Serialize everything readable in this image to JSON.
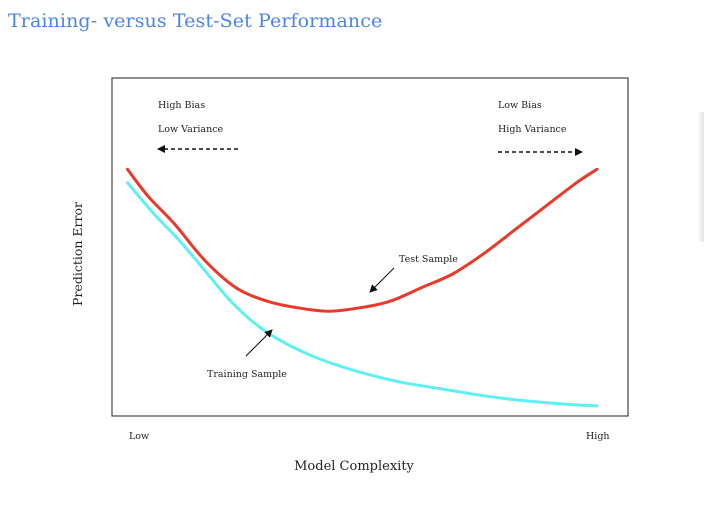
{
  "page": {
    "title": "Training- versus Test-Set Performance",
    "title_color": "#4a86e8"
  },
  "chart_data": {
    "type": "line",
    "xlabel": "Model Complexity",
    "ylabel": "Prediction Error",
    "xticks": [
      {
        "label": "Low",
        "value": 0
      },
      {
        "label": "High",
        "value": 1
      }
    ],
    "xlim": [
      0,
      1
    ],
    "ylim": [
      0,
      1
    ],
    "grid": false,
    "annotations": {
      "left_line1": "High Bias",
      "left_line2": "Low Variance",
      "right_line1": "Low Bias",
      "right_line2": "High Variance",
      "test_label": "Test Sample",
      "training_label": "Training Sample"
    },
    "series": [
      {
        "name": "Test Sample",
        "color": "#e8392a",
        "x": [
          0.03,
          0.07,
          0.12,
          0.18,
          0.24,
          0.3,
          0.36,
          0.42,
          0.48,
          0.54,
          0.6,
          0.66,
          0.72,
          0.78,
          0.84,
          0.9,
          0.94
        ],
        "y": [
          0.73,
          0.65,
          0.57,
          0.46,
          0.38,
          0.34,
          0.32,
          0.31,
          0.32,
          0.34,
          0.38,
          0.42,
          0.48,
          0.55,
          0.62,
          0.69,
          0.73
        ]
      },
      {
        "name": "Training Sample",
        "color": "#5ff1f1",
        "x": [
          0.03,
          0.08,
          0.13,
          0.18,
          0.23,
          0.28,
          0.33,
          0.4,
          0.48,
          0.56,
          0.64,
          0.72,
          0.8,
          0.88,
          0.94
        ],
        "y": [
          0.69,
          0.6,
          0.52,
          0.43,
          0.34,
          0.27,
          0.22,
          0.17,
          0.13,
          0.1,
          0.08,
          0.06,
          0.045,
          0.035,
          0.03
        ]
      }
    ]
  }
}
